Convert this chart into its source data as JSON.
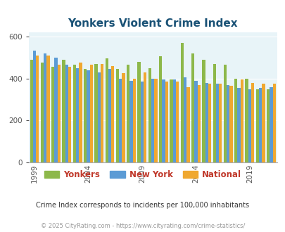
{
  "title": "Yonkers Violent Crime Index",
  "title_color": "#1a5276",
  "subtitle": "Crime Index corresponds to incidents per 100,000 inhabitants",
  "footer": "© 2025 CityRating.com - https://www.cityrating.com/crime-statistics/",
  "years": [
    1999,
    2000,
    2001,
    2002,
    2003,
    2004,
    2005,
    2006,
    2007,
    2008,
    2009,
    2010,
    2011,
    2012,
    2013,
    2014,
    2015,
    2016,
    2017,
    2018,
    2019,
    2020,
    2021
  ],
  "yonkers": [
    490,
    475,
    455,
    490,
    465,
    445,
    470,
    495,
    445,
    465,
    480,
    450,
    505,
    395,
    570,
    520,
    490,
    470,
    465,
    400,
    400,
    350,
    350
  ],
  "new_york": [
    535,
    520,
    500,
    465,
    450,
    440,
    430,
    445,
    400,
    390,
    385,
    400,
    395,
    395,
    405,
    390,
    380,
    375,
    370,
    355,
    350,
    355,
    360
  ],
  "national": [
    510,
    510,
    465,
    455,
    475,
    465,
    470,
    460,
    425,
    400,
    430,
    400,
    385,
    385,
    360,
    370,
    375,
    375,
    365,
    395,
    380,
    375,
    375
  ],
  "colors": {
    "yonkers": "#8db84a",
    "new_york": "#5b9bd5",
    "national": "#f0a830"
  },
  "background_color": "#e8f4f8",
  "ylim": [
    0,
    620
  ],
  "yticks": [
    0,
    200,
    400,
    600
  ],
  "legend_labels": [
    "Yonkers",
    "New York",
    "National"
  ],
  "legend_colors": [
    "#8db84a",
    "#5b9bd5",
    "#f0a830"
  ],
  "legend_text_colors": [
    "#c0392b",
    "#c0392b",
    "#c0392b"
  ]
}
